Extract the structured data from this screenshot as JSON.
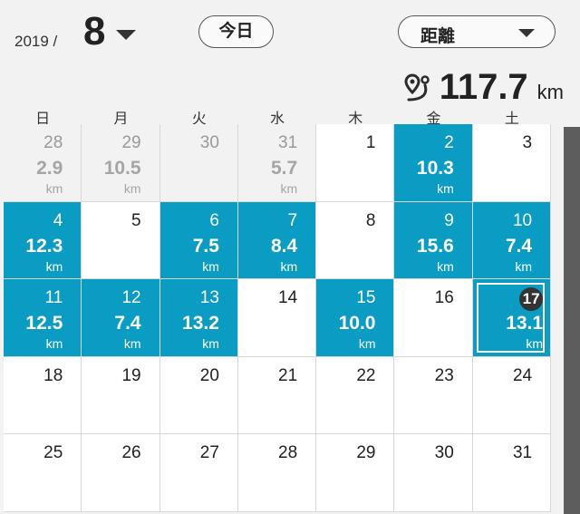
{
  "header": {
    "year": "2019 /",
    "month": "8",
    "today_label": "今日",
    "metric_label": "距離"
  },
  "total": {
    "value": "117.7",
    "unit": "km",
    "icon": "route-pin-icon"
  },
  "weekdays": [
    "日",
    "月",
    "火",
    "水",
    "木",
    "金",
    "土"
  ],
  "days": [
    {
      "day": "28",
      "value": "2.9",
      "unit": "km",
      "state": "muted"
    },
    {
      "day": "29",
      "value": "10.5",
      "unit": "km",
      "state": "muted"
    },
    {
      "day": "30",
      "value": "",
      "unit": "",
      "state": "muted"
    },
    {
      "day": "31",
      "value": "5.7",
      "unit": "km",
      "state": "muted"
    },
    {
      "day": "1",
      "value": "",
      "unit": "",
      "state": "empty"
    },
    {
      "day": "2",
      "value": "10.3",
      "unit": "km",
      "state": "active"
    },
    {
      "day": "3",
      "value": "",
      "unit": "",
      "state": "empty"
    },
    {
      "day": "4",
      "value": "12.3",
      "unit": "km",
      "state": "active"
    },
    {
      "day": "5",
      "value": "",
      "unit": "",
      "state": "empty"
    },
    {
      "day": "6",
      "value": "7.5",
      "unit": "km",
      "state": "active"
    },
    {
      "day": "7",
      "value": "8.4",
      "unit": "km",
      "state": "active"
    },
    {
      "day": "8",
      "value": "",
      "unit": "",
      "state": "empty"
    },
    {
      "day": "9",
      "value": "15.6",
      "unit": "km",
      "state": "active"
    },
    {
      "day": "10",
      "value": "7.4",
      "unit": "km",
      "state": "active"
    },
    {
      "day": "11",
      "value": "12.5",
      "unit": "km",
      "state": "active"
    },
    {
      "day": "12",
      "value": "7.4",
      "unit": "km",
      "state": "active"
    },
    {
      "day": "13",
      "value": "13.2",
      "unit": "km",
      "state": "active"
    },
    {
      "day": "14",
      "value": "",
      "unit": "",
      "state": "empty"
    },
    {
      "day": "15",
      "value": "10.0",
      "unit": "km",
      "state": "active"
    },
    {
      "day": "16",
      "value": "",
      "unit": "",
      "state": "empty"
    },
    {
      "day": "17",
      "value": "13.1",
      "unit": "km",
      "state": "active today"
    },
    {
      "day": "18",
      "value": "",
      "unit": "",
      "state": "empty"
    },
    {
      "day": "19",
      "value": "",
      "unit": "",
      "state": "empty"
    },
    {
      "day": "20",
      "value": "",
      "unit": "",
      "state": "empty"
    },
    {
      "day": "21",
      "value": "",
      "unit": "",
      "state": "empty"
    },
    {
      "day": "22",
      "value": "",
      "unit": "",
      "state": "empty"
    },
    {
      "day": "23",
      "value": "",
      "unit": "",
      "state": "empty"
    },
    {
      "day": "24",
      "value": "",
      "unit": "",
      "state": "empty"
    },
    {
      "day": "25",
      "value": "",
      "unit": "",
      "state": "empty"
    },
    {
      "day": "26",
      "value": "",
      "unit": "",
      "state": "empty"
    },
    {
      "day": "27",
      "value": "",
      "unit": "",
      "state": "empty"
    },
    {
      "day": "28",
      "value": "",
      "unit": "",
      "state": "empty"
    },
    {
      "day": "29",
      "value": "",
      "unit": "",
      "state": "empty"
    },
    {
      "day": "30",
      "value": "",
      "unit": "",
      "state": "empty"
    },
    {
      "day": "31",
      "value": "",
      "unit": "",
      "state": "empty"
    }
  ],
  "colors": {
    "accent": "#0a9cc3",
    "muted_text": "#a5a5a5"
  }
}
